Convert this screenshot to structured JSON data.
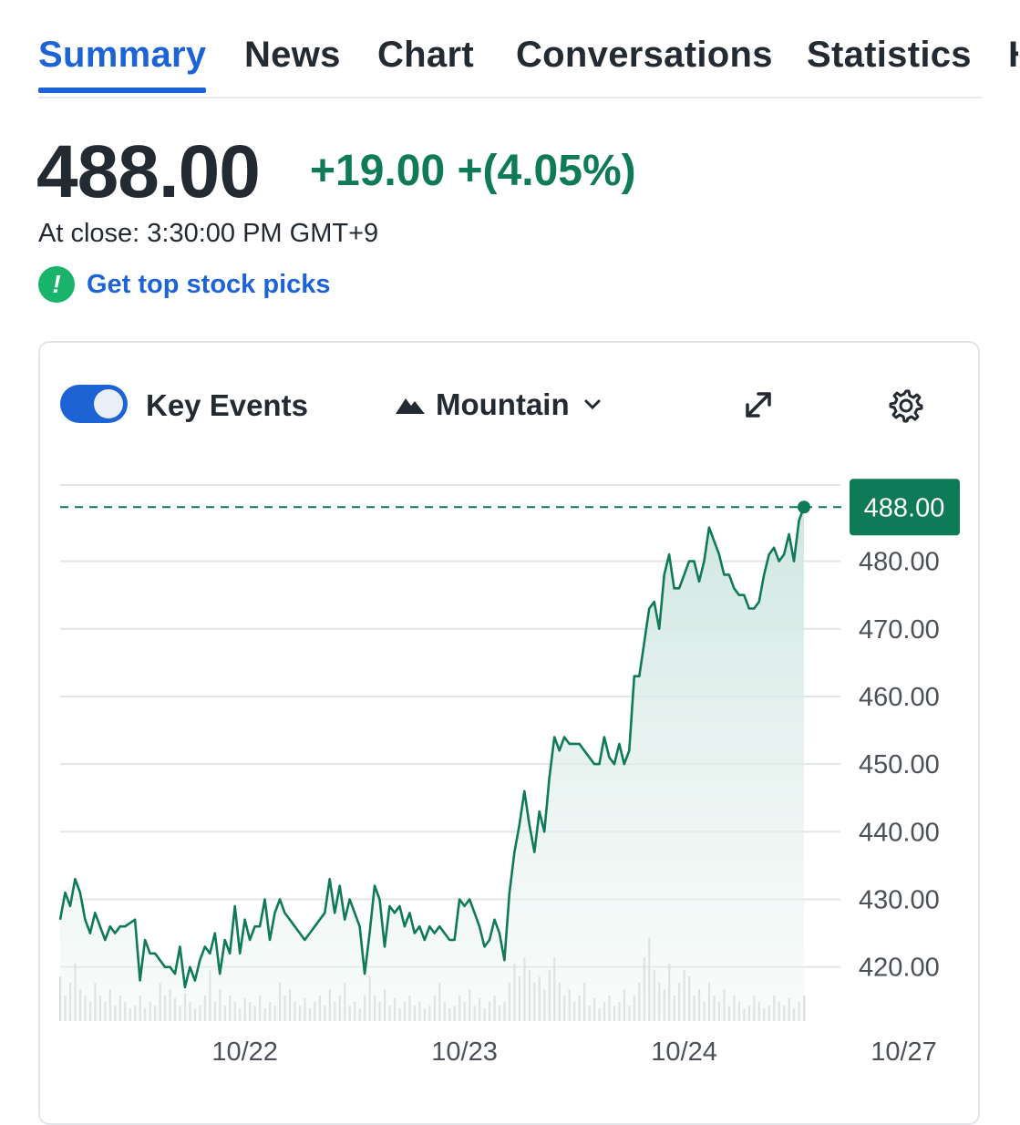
{
  "tabs": [
    {
      "label": "Summary",
      "active": true
    },
    {
      "label": "News"
    },
    {
      "label": "Chart"
    },
    {
      "label": "Conversations"
    },
    {
      "label": "Statistics"
    },
    {
      "label": "H"
    }
  ],
  "quote": {
    "price": "488.00",
    "change": "+19.00",
    "change_percent": "+(4.05%)",
    "close_time": "At close: 3:30:00 PM GMT+9",
    "positive_color": "#0e7a58"
  },
  "promo": {
    "icon": "exclamation-icon",
    "label": "Get top stock picks"
  },
  "chart_controls": {
    "key_events_label": "Key Events",
    "key_events_on": true,
    "chart_type_label": "Mountain",
    "chart_type_icon": "mountain-icon",
    "expand_icon": "expand-icon",
    "settings_icon": "gear-icon"
  },
  "chart_data": {
    "type": "area",
    "style": "mountain",
    "line_color": "#0e7a58",
    "fill_color": "#d9ece8",
    "volume_color": "#c4c8cc",
    "ylim": [
      412,
      491
    ],
    "y_ticks": [
      "480.00",
      "470.00",
      "460.00",
      "450.00",
      "440.00",
      "430.00",
      "420.00"
    ],
    "x_ticks": [
      {
        "label": "10/22",
        "index": 37
      },
      {
        "label": "10/23",
        "index": 81
      },
      {
        "label": "10/24",
        "index": 125
      },
      {
        "label": "10/27",
        "index": 169
      }
    ],
    "current_price": 488.0,
    "current_price_label": "488.00",
    "prices": [
      427,
      431,
      429,
      433,
      431,
      427,
      425,
      428,
      426,
      424,
      426,
      425,
      426,
      426,
      426.5,
      427,
      418,
      424,
      422,
      422,
      421,
      420,
      420,
      419,
      423,
      417,
      420,
      418,
      421,
      423,
      422,
      425,
      419,
      424,
      422,
      429,
      422,
      427,
      424,
      426,
      426,
      430,
      424,
      428,
      430,
      428,
      427,
      426,
      425,
      424,
      425,
      426,
      427,
      428,
      433,
      428,
      432,
      427,
      430,
      428,
      426,
      419,
      425,
      432,
      430,
      423,
      429,
      428,
      429,
      426,
      428,
      425,
      426,
      424,
      426,
      425,
      426,
      425,
      424,
      424,
      430,
      429,
      430,
      428,
      426,
      423,
      424,
      427,
      425,
      421,
      431,
      437,
      441,
      446,
      441,
      437,
      443,
      440,
      448,
      454,
      452,
      454,
      453,
      453,
      453,
      452,
      451,
      450,
      450,
      454,
      451,
      450,
      453,
      450,
      452,
      463,
      463,
      468,
      473,
      474,
      470,
      478,
      481,
      476,
      476,
      478,
      480,
      480,
      477,
      480,
      485,
      483,
      481,
      478,
      478,
      476,
      475,
      475,
      473,
      473,
      474,
      478,
      481,
      482,
      480,
      481,
      484,
      480,
      486,
      488
    ],
    "volumes": [
      0.35,
      0.2,
      0.3,
      0.45,
      0.25,
      0.2,
      0.15,
      0.3,
      0.2,
      0.15,
      0.25,
      0.12,
      0.2,
      0.15,
      0.1,
      0.12,
      0.2,
      0.1,
      0.15,
      0.12,
      0.3,
      0.2,
      0.25,
      0.18,
      0.12,
      0.22,
      0.15,
      0.1,
      0.12,
      0.2,
      0.4,
      0.15,
      0.25,
      0.12,
      0.2,
      0.15,
      0.1,
      0.18,
      0.15,
      0.12,
      0.2,
      0.1,
      0.15,
      0.12,
      0.3,
      0.2,
      0.25,
      0.15,
      0.12,
      0.18,
      0.1,
      0.15,
      0.2,
      0.12,
      0.25,
      0.15,
      0.2,
      0.3,
      0.12,
      0.15,
      0.1,
      0.2,
      0.35,
      0.2,
      0.15,
      0.25,
      0.12,
      0.18,
      0.1,
      0.15,
      0.2,
      0.12,
      0.15,
      0.1,
      0.12,
      0.2,
      0.3,
      0.15,
      0.1,
      0.12,
      0.2,
      0.15,
      0.25,
      0.12,
      0.18,
      0.1,
      0.15,
      0.2,
      0.12,
      0.15,
      0.3,
      0.45,
      0.35,
      0.5,
      0.4,
      0.3,
      0.35,
      0.25,
      0.4,
      0.5,
      0.3,
      0.2,
      0.25,
      0.15,
      0.2,
      0.3,
      0.12,
      0.18,
      0.1,
      0.15,
      0.2,
      0.12,
      0.15,
      0.25,
      0.12,
      0.2,
      0.3,
      0.5,
      0.65,
      0.4,
      0.3,
      0.25,
      0.45,
      0.2,
      0.3,
      0.4,
      0.35,
      0.2,
      0.25,
      0.15,
      0.3,
      0.2,
      0.15,
      0.25,
      0.12,
      0.2,
      0.15,
      0.1,
      0.12,
      0.2,
      0.15,
      0.1,
      0.12,
      0.2,
      0.15,
      0.12,
      0.18,
      0.1,
      0.15,
      0.2
    ]
  }
}
